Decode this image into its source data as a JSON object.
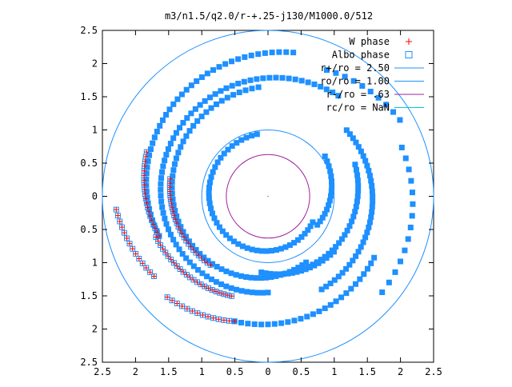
{
  "chart_data": {
    "type": "scatter",
    "title": "m3/n1.5/q2.0/r-+.25-j130/M1000.0/512",
    "xlim": [
      -2.5,
      2.5
    ],
    "ylim": [
      -2.5,
      2.5
    ],
    "x_tick_values": [
      -2.5,
      -2,
      -1.5,
      -1,
      -0.5,
      0,
      0.5,
      1,
      1.5,
      2,
      2.5
    ],
    "x_tick_labels": [
      "2.5",
      "2",
      "1.5",
      "1",
      "0.5",
      "0",
      "0.5",
      "1",
      "1.5",
      "2",
      "2.5"
    ],
    "y_tick_values": [
      2.5,
      2,
      1.5,
      1,
      0.5,
      0,
      -0.5,
      -1,
      -1.5,
      -2,
      -2.5
    ],
    "y_tick_labels": [
      "2.5",
      "2",
      "1.5",
      "1",
      "0.5",
      "0",
      "0.5",
      "1",
      "1.5",
      "2",
      "2.5"
    ],
    "grid": false,
    "legend_position": "top-right",
    "colors": {
      "w_phase": "#ff0000",
      "albo_phase": "#1e90ff",
      "r_plus": "#1e90ff",
      "ro": "#1e90ff",
      "r_minus": "#a020a0",
      "rc": "#00cccc"
    },
    "legend": [
      {
        "key": "w_phase",
        "label": "W phase",
        "marker": "plus",
        "color": "#ff0000"
      },
      {
        "key": "albo_phase",
        "label": "Albo phase",
        "marker": "square",
        "color": "#1e90ff"
      },
      {
        "key": "r_plus",
        "label": "r+/ro = 2.50",
        "marker": "line",
        "color": "#1e90ff"
      },
      {
        "key": "ro",
        "label": "ro/ro = 1.00",
        "marker": "line",
        "color": "#1e90ff"
      },
      {
        "key": "r_minus",
        "label": "r-/ro =  .63",
        "marker": "line",
        "color": "#a020a0"
      },
      {
        "key": "rc",
        "label": "rc/ro = NaN",
        "marker": "line",
        "color": "#00cccc"
      }
    ],
    "circles": [
      {
        "key": "r_plus",
        "radius": 2.5
      },
      {
        "key": "ro",
        "radius": 1.0
      },
      {
        "key": "r_minus",
        "radius": 0.63
      }
    ],
    "center_point": [
      0,
      0
    ],
    "albo_arcs": [
      {
        "name": "arm-inner",
        "r0": 0.95,
        "r1": 0.78,
        "t0": 100,
        "t1": 330,
        "n": 46
      },
      {
        "name": "arm-inner-2",
        "r0": 0.86,
        "r1": 1.05,
        "t0": 330,
        "t1": 395,
        "n": 16
      },
      {
        "name": "arm-a",
        "r0": 1.65,
        "r1": 1.15,
        "t0": 95,
        "t1": 300,
        "n": 60
      },
      {
        "name": "arm-b",
        "r0": 1.85,
        "r1": 1.45,
        "t0": 55,
        "t1": 270,
        "n": 70
      },
      {
        "name": "arm-c",
        "r0": 1.62,
        "r1": 1.55,
        "t0": -60,
        "t1": 40,
        "n": 36
      },
      {
        "name": "arm-d",
        "r0": 2.2,
        "r1": 1.75,
        "t0": 80,
        "t1": 200,
        "n": 44
      },
      {
        "name": "arm-e",
        "r0": 1.95,
        "r1": 1.85,
        "t0": 255,
        "t1": 330,
        "n": 26
      },
      {
        "name": "arm-f",
        "r0": 1.4,
        "r1": 1.2,
        "t0": 20,
        "t1": -70,
        "n": 28
      },
      {
        "name": "arm-g",
        "r0": 2.25,
        "r1": 2.15,
        "t0": -40,
        "t1": 20,
        "n": 14
      },
      {
        "name": "arm-h",
        "r0": 2.3,
        "r1": 2.1,
        "t0": 30,
        "t1": 65,
        "n": 10
      },
      {
        "name": "arm-i",
        "r0": 1.15,
        "r1": 1.3,
        "t0": -95,
        "t1": -40,
        "n": 18
      }
    ],
    "w_arcs": [
      {
        "name": "w-1",
        "r0": 1.95,
        "r1": 1.75,
        "t0": 160,
        "t1": 200,
        "n": 20
      },
      {
        "name": "w-2",
        "r0": 1.5,
        "r1": 1.35,
        "t0": 170,
        "t1": 230,
        "n": 26
      },
      {
        "name": "w-3",
        "r0": 1.8,
        "r1": 1.6,
        "t0": 200,
        "t1": 250,
        "n": 24
      },
      {
        "name": "w-4",
        "r0": 2.3,
        "r1": 2.1,
        "t0": 185,
        "t1": 215,
        "n": 14
      },
      {
        "name": "w-5",
        "r0": 2.15,
        "r1": 1.95,
        "t0": 225,
        "t1": 255,
        "n": 14
      }
    ]
  }
}
